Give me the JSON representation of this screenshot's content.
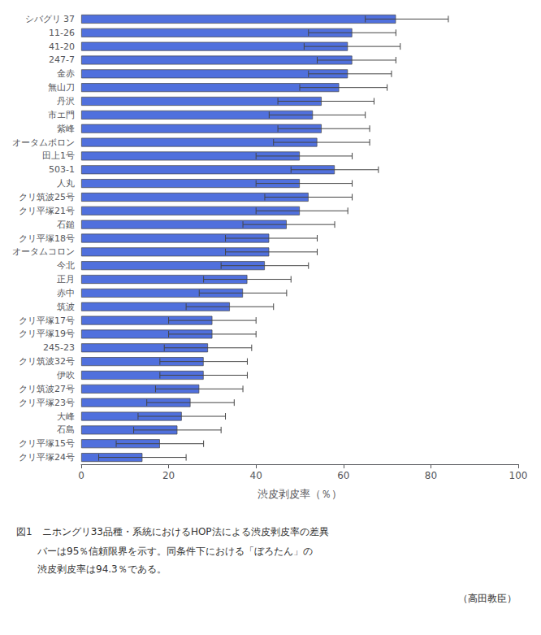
{
  "chart_data": {
    "type": "bar",
    "orientation": "horizontal",
    "categories": [
      "シバグリ 37",
      "11-26",
      "41-20",
      "247-7",
      "金赤",
      "無山刀",
      "丹沢",
      "市エ門",
      "紫峰",
      "オータムボロン",
      "田上1号",
      "503-1",
      "人丸",
      "クリ筑波25号",
      "クリ平塚21号",
      "石鎚",
      "クリ平塚18号",
      "オータムコロン",
      "今北",
      "正月",
      "赤中",
      "筑波",
      "クリ平塚17号",
      "クリ平塚19号",
      "245-23",
      "クリ筑波32号",
      "伊吹",
      "クリ筑波27号",
      "クリ平塚23号",
      "大峰",
      "石島",
      "クリ平塚15号",
      "クリ平塚24号"
    ],
    "values": [
      72,
      62,
      61,
      62,
      61,
      59,
      55,
      53,
      55,
      54,
      50,
      58,
      50,
      52,
      50,
      47,
      43,
      43,
      42,
      38,
      37,
      34,
      30,
      30,
      29,
      28,
      28,
      27,
      25,
      23,
      22,
      18,
      14
    ],
    "ci_low": [
      65,
      52,
      51,
      54,
      52,
      50,
      45,
      43,
      45,
      44,
      40,
      48,
      40,
      42,
      40,
      37,
      33,
      33,
      32,
      28,
      27,
      24,
      20,
      20,
      19,
      18,
      18,
      17,
      15,
      13,
      12,
      8,
      4
    ],
    "ci_high": [
      84,
      72,
      73,
      72,
      71,
      70,
      67,
      65,
      66,
      66,
      62,
      68,
      62,
      62,
      61,
      58,
      54,
      54,
      52,
      48,
      47,
      44,
      40,
      40,
      39,
      38,
      38,
      37,
      35,
      33,
      32,
      28,
      24
    ],
    "xlabel": "渋皮剥皮率（％）",
    "xlim": [
      0,
      100
    ],
    "xticks": [
      0,
      20,
      40,
      60,
      80,
      100
    ],
    "grid": false,
    "annotations": [
      "図1　ニホングリ33品種・系統におけるHOP法による渋皮剥皮率の差異",
      "バーは95％信頼限界を示す。同条件下における「ぼろたん」の",
      "渋皮剥皮率は94.3％である。",
      "（高田教臣）"
    ]
  }
}
